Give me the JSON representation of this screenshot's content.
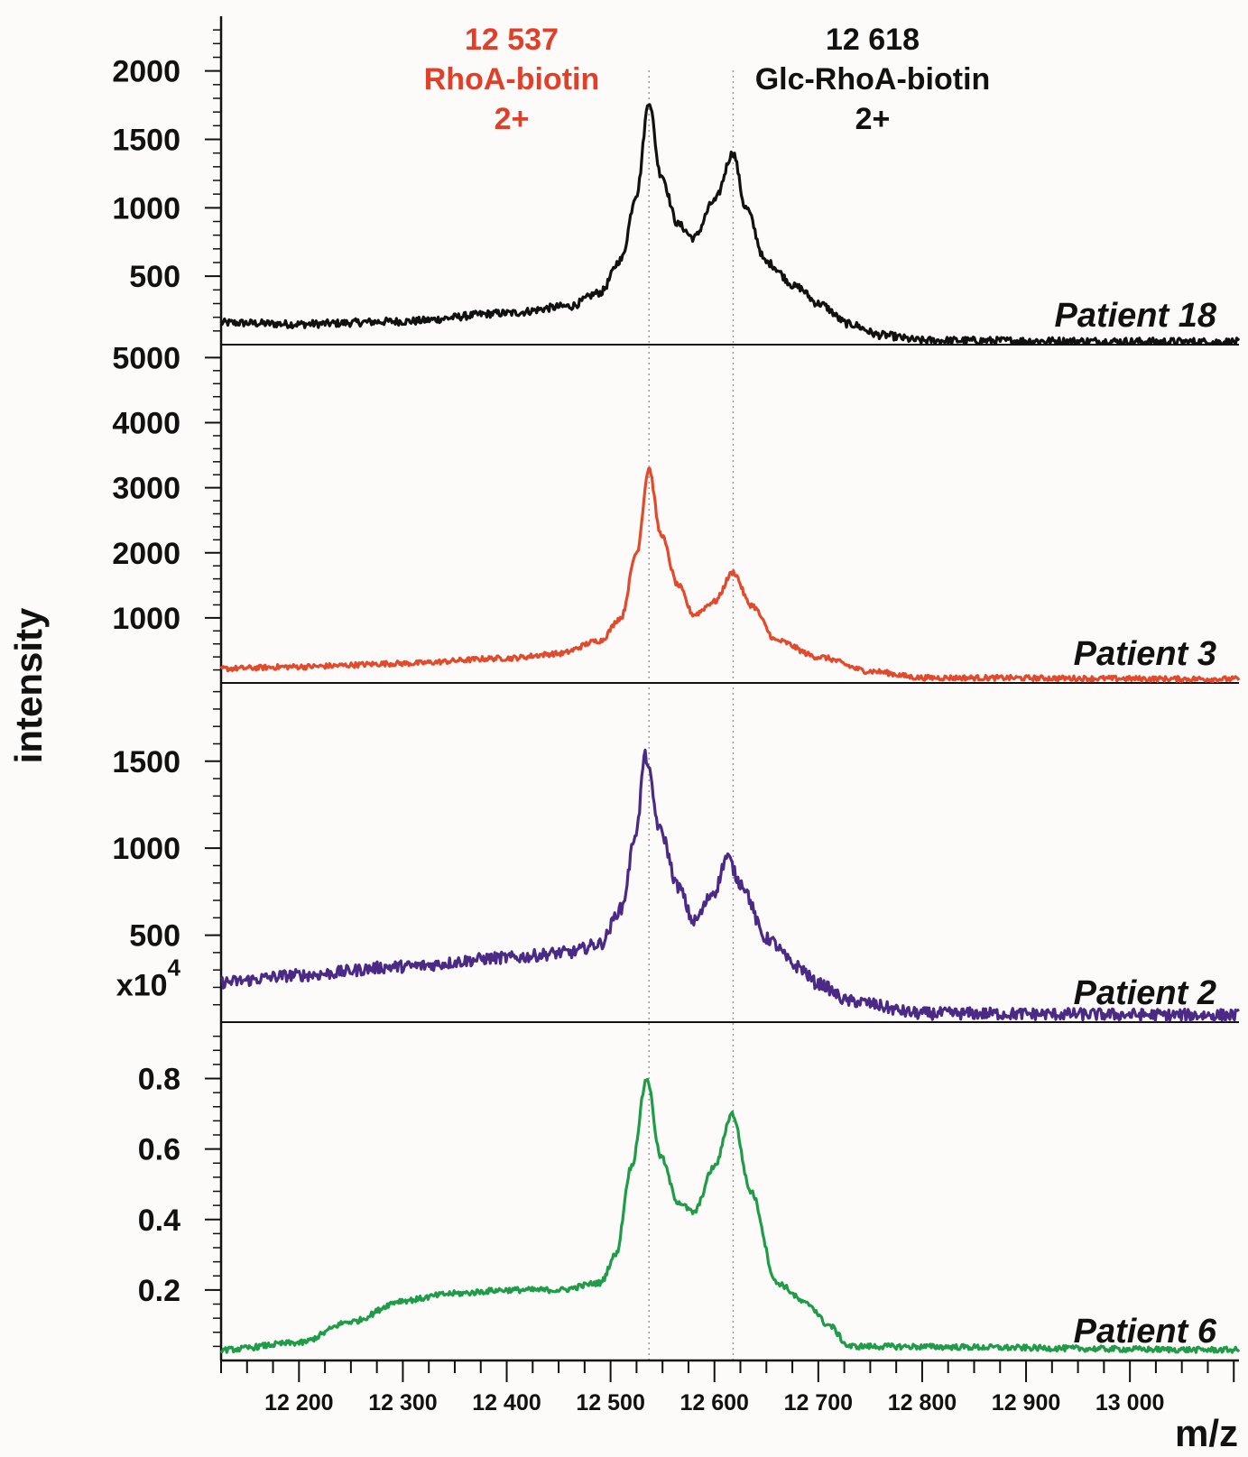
{
  "chart_data": {
    "type": "line",
    "xlabel": "m/z",
    "ylabel": "intensity",
    "xlim": [
      12125,
      13105
    ],
    "x_ticks": [
      {
        "value": 12200,
        "label": "12 200"
      },
      {
        "value": 12300,
        "label": "12 300"
      },
      {
        "value": 12400,
        "label": "12 400"
      },
      {
        "value": 12500,
        "label": "12 500"
      },
      {
        "value": 12600,
        "label": "12 600"
      },
      {
        "value": 12700,
        "label": "12 700"
      },
      {
        "value": 12800,
        "label": "12 800"
      },
      {
        "value": 12900,
        "label": "12 900"
      },
      {
        "value": 13000,
        "label": "13 000"
      }
    ],
    "peak_annotations": [
      {
        "x": 12537,
        "lines": [
          "12 537",
          "RhoA-biotin",
          "2+"
        ],
        "color": "#e0402a"
      },
      {
        "x": 12618,
        "lines": [
          "12 618",
          "Glc-RhoA-biotin",
          "2+"
        ],
        "color": "#111111"
      }
    ],
    "panels": [
      {
        "name": "Patient 18",
        "color": "#111111",
        "ylim": [
          0,
          2400
        ],
        "y_ticks": [
          {
            "value": 500,
            "label": "500"
          },
          {
            "value": 1000,
            "label": "1000"
          },
          {
            "value": 1500,
            "label": "1500"
          },
          {
            "value": 2000,
            "label": "2000"
          }
        ],
        "y_exponent": "",
        "keypoints": [
          [
            12125,
            160
          ],
          [
            12200,
            150
          ],
          [
            12300,
            170
          ],
          [
            12400,
            230
          ],
          [
            12460,
            280
          ],
          [
            12490,
            380
          ],
          [
            12510,
            620
          ],
          [
            12525,
            1100
          ],
          [
            12537,
            1780
          ],
          [
            12548,
            1250
          ],
          [
            12565,
            880
          ],
          [
            12580,
            780
          ],
          [
            12600,
            1050
          ],
          [
            12618,
            1400
          ],
          [
            12630,
            1000
          ],
          [
            12650,
            600
          ],
          [
            12680,
            420
          ],
          [
            12700,
            300
          ],
          [
            12730,
            150
          ],
          [
            12760,
            70
          ],
          [
            12800,
            30
          ],
          [
            13105,
            20
          ]
        ],
        "noise": 28
      },
      {
        "name": "Patient 3",
        "color": "#e34a2c",
        "ylim": [
          0,
          5200
        ],
        "y_ticks": [
          {
            "value": 1000,
            "label": "1000"
          },
          {
            "value": 2000,
            "label": "2000"
          },
          {
            "value": 3000,
            "label": "3000"
          },
          {
            "value": 4000,
            "label": "4000"
          },
          {
            "value": 5000,
            "label": "5000"
          }
        ],
        "y_exponent": "",
        "keypoints": [
          [
            12125,
            220
          ],
          [
            12200,
            250
          ],
          [
            12300,
            300
          ],
          [
            12400,
            380
          ],
          [
            12450,
            450
          ],
          [
            12490,
            650
          ],
          [
            12510,
            1000
          ],
          [
            12525,
            2000
          ],
          [
            12537,
            3300
          ],
          [
            12548,
            2300
          ],
          [
            12565,
            1500
          ],
          [
            12580,
            1050
          ],
          [
            12600,
            1250
          ],
          [
            12618,
            1700
          ],
          [
            12635,
            1200
          ],
          [
            12660,
            650
          ],
          [
            12700,
            400
          ],
          [
            12750,
            180
          ],
          [
            12800,
            80
          ],
          [
            13105,
            60
          ]
        ],
        "noise": 40
      },
      {
        "name": "Patient 2",
        "color": "#4a2a86",
        "ylim": [
          0,
          1950
        ],
        "y_ticks": [
          {
            "value": 500,
            "label": "500"
          },
          {
            "value": 1000,
            "label": "1000"
          },
          {
            "value": 1500,
            "label": "1500"
          }
        ],
        "y_exponent": "",
        "keypoints": [
          [
            12125,
            230
          ],
          [
            12200,
            270
          ],
          [
            12300,
            320
          ],
          [
            12400,
            370
          ],
          [
            12460,
            400
          ],
          [
            12490,
            450
          ],
          [
            12510,
            650
          ],
          [
            12525,
            1100
          ],
          [
            12533,
            1530
          ],
          [
            12548,
            1100
          ],
          [
            12565,
            780
          ],
          [
            12580,
            580
          ],
          [
            12600,
            750
          ],
          [
            12612,
            950
          ],
          [
            12625,
            800
          ],
          [
            12650,
            480
          ],
          [
            12680,
            320
          ],
          [
            12700,
            220
          ],
          [
            12730,
            120
          ],
          [
            12800,
            50
          ],
          [
            13105,
            40
          ]
        ],
        "noise": 35
      },
      {
        "name": "Patient 6",
        "color": "#1f9c47",
        "ylim": [
          0,
          0.96
        ],
        "y_ticks": [
          {
            "value": 0.2,
            "label": "0.2"
          },
          {
            "value": 0.4,
            "label": "0.4"
          },
          {
            "value": 0.6,
            "label": "0.6"
          },
          {
            "value": 0.8,
            "label": "0.8"
          }
        ],
        "y_exponent": "x10 4",
        "keypoints": [
          [
            12125,
            0.03
          ],
          [
            12200,
            0.05
          ],
          [
            12250,
            0.11
          ],
          [
            12300,
            0.17
          ],
          [
            12350,
            0.19
          ],
          [
            12400,
            0.2
          ],
          [
            12450,
            0.2
          ],
          [
            12490,
            0.22
          ],
          [
            12505,
            0.3
          ],
          [
            12520,
            0.55
          ],
          [
            12535,
            0.8
          ],
          [
            12548,
            0.58
          ],
          [
            12565,
            0.45
          ],
          [
            12580,
            0.42
          ],
          [
            12600,
            0.55
          ],
          [
            12617,
            0.7
          ],
          [
            12635,
            0.48
          ],
          [
            12660,
            0.22
          ],
          [
            12690,
            0.16
          ],
          [
            12710,
            0.1
          ],
          [
            12730,
            0.04
          ],
          [
            13105,
            0.03
          ]
        ],
        "noise": 0.008
      }
    ]
  }
}
